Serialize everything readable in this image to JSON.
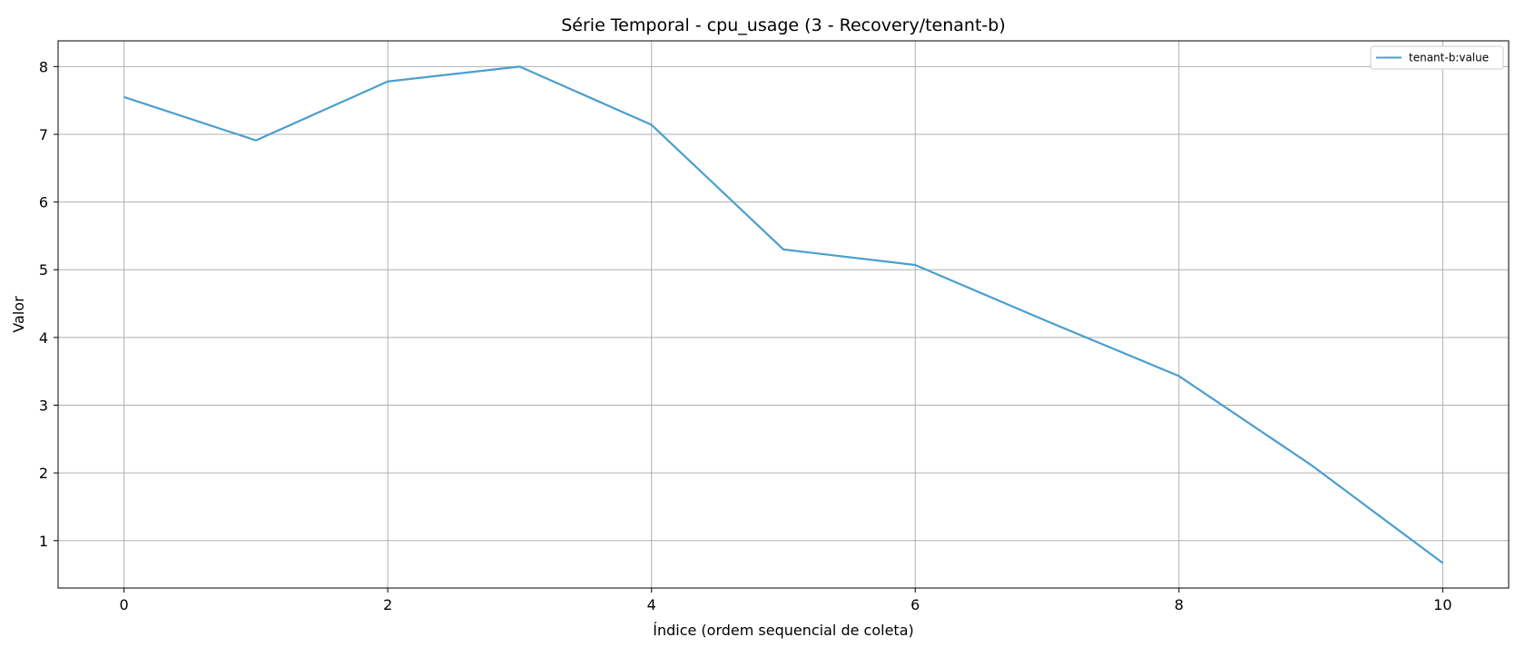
{
  "chart_data": {
    "type": "line",
    "title": "Série Temporal - cpu_usage (3 - Recovery/tenant-b)",
    "xlabel": "Índice (ordem sequencial de coleta)",
    "ylabel": "Valor",
    "xlim": [
      -0.5,
      10.5
    ],
    "ylim": [
      0.3,
      8.38
    ],
    "xticks": [
      0,
      2,
      4,
      6,
      8,
      10
    ],
    "yticks": [
      1,
      2,
      3,
      4,
      5,
      6,
      7,
      8
    ],
    "grid": true,
    "legend_position": "top-right",
    "x": [
      0,
      1,
      2,
      3,
      4,
      5,
      6,
      7,
      8,
      9,
      10
    ],
    "series": [
      {
        "name": "tenant-b:value",
        "color": "#4a9ecf",
        "values": [
          7.55,
          6.91,
          7.78,
          8.0,
          7.14,
          5.3,
          5.07,
          4.24,
          3.43,
          2.12,
          0.67
        ]
      }
    ]
  }
}
